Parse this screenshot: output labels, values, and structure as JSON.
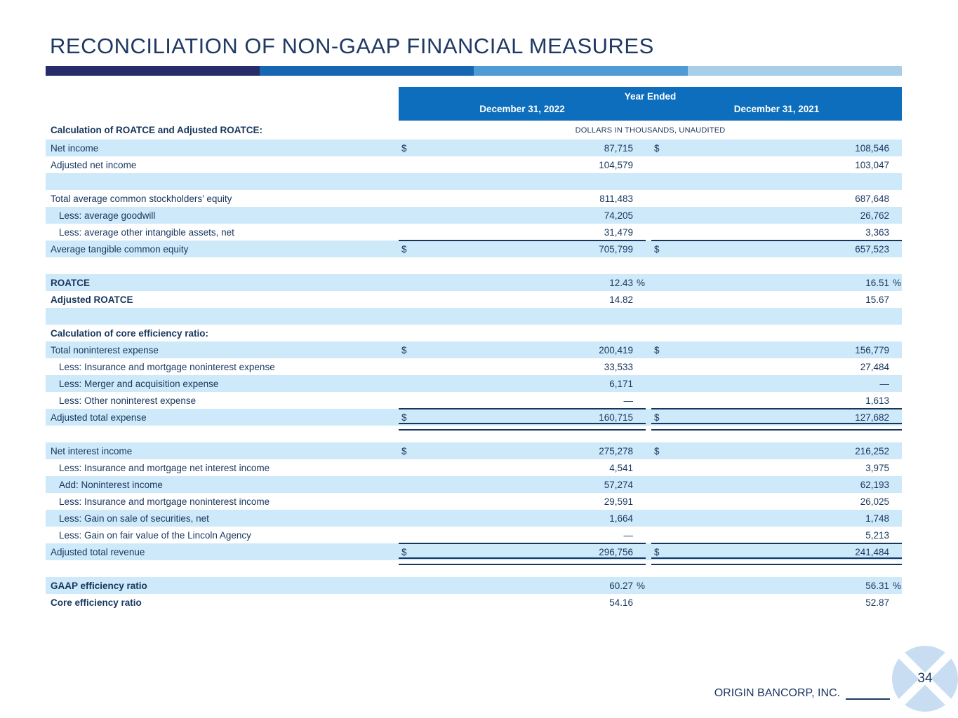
{
  "title": "RECONCILIATION OF NON-GAAP FINANCIAL MEASURES",
  "accent_bar": [
    "#262C67",
    "#1766B2",
    "#4E9BD5",
    "#A8CEEA"
  ],
  "colors": {
    "header_bg": "#0D6EBD",
    "header_text": "#FFFFFF",
    "row_highlight": "#CEE9F9",
    "table_text": "#17365D",
    "title_text": "#1F3864",
    "rule": "#17365D",
    "circle_fill": "#C9DDF2"
  },
  "table": {
    "year_ended": "Year Ended",
    "col_headers": [
      "December 31, 2022",
      "December 31, 2021"
    ],
    "section1": "Calculation of ROATCE and Adjusted ROATCE:",
    "note": "DOLLARS IN THOUSANDS, UNAUDITED",
    "rows": [
      {
        "label": "Net income",
        "d1": "$",
        "v1": "87,715",
        "d2": "$",
        "v2": "108,546",
        "shade": "blue"
      },
      {
        "label": "Adjusted net income",
        "v1": "104,579",
        "v2": "103,047",
        "shade": "white"
      },
      {
        "label": "",
        "shade": "blue"
      },
      {
        "label": "Total average common stockholders’ equity",
        "v1": "811,483",
        "v2": "687,648",
        "shade": "white"
      },
      {
        "label": "Less: average goodwill",
        "v1": "74,205",
        "v2": "26,762",
        "shade": "blue",
        "indent": true
      },
      {
        "label": "Less: average other intangible assets, net",
        "v1": "31,479",
        "v2": "3,363",
        "shade": "white",
        "indent": true,
        "rule": "single"
      },
      {
        "label": "Average tangible common equity",
        "d1": "$",
        "v1": "705,799",
        "d2": "$",
        "v2": "657,523",
        "shade": "blue"
      },
      {
        "label": "",
        "shade": "white"
      },
      {
        "label": "ROATCE",
        "v1": "12.43",
        "p1": "%",
        "v2": "16.51",
        "p2": "%",
        "shade": "blue",
        "bold": true
      },
      {
        "label": "Adjusted ROATCE",
        "v1": "14.82",
        "v2": "15.67",
        "shade": "white",
        "bold": true
      },
      {
        "label": "",
        "shade": "blue"
      },
      {
        "label": "Calculation of core efficiency ratio:",
        "shade": "white",
        "bold": true
      },
      {
        "label": "Total noninterest expense",
        "d1": "$",
        "v1": "200,419",
        "d2": "$",
        "v2": "156,779",
        "shade": "blue"
      },
      {
        "label": "Less: Insurance and mortgage noninterest expense",
        "v1": "33,533",
        "v2": "27,484",
        "shade": "white",
        "indent": true
      },
      {
        "label": "Less: Merger and acquisition expense",
        "v1": "6,171",
        "v2": "—",
        "shade": "blue",
        "indent": true
      },
      {
        "label": "Less: Other noninterest expense",
        "v1": "—",
        "v2": "1,613",
        "shade": "white",
        "indent": true,
        "rule": "single"
      },
      {
        "label": "Adjusted total expense",
        "d1": "$",
        "v1": "160,715",
        "d2": "$",
        "v2": "127,682",
        "shade": "blue",
        "rule": "double"
      },
      {
        "label": "",
        "shade": "white"
      },
      {
        "label": "Net interest income",
        "d1": "$",
        "v1": "275,278",
        "d2": "$",
        "v2": "216,252",
        "shade": "blue"
      },
      {
        "label": "Less: Insurance and mortgage net interest income",
        "v1": "4,541",
        "v2": "3,975",
        "shade": "white",
        "indent": true
      },
      {
        "label": "Add: Noninterest income",
        "v1": "57,274",
        "v2": "62,193",
        "shade": "blue",
        "indent": true
      },
      {
        "label": "Less: Insurance and mortgage noninterest income",
        "v1": "29,591",
        "v2": "26,025",
        "shade": "white",
        "indent": true
      },
      {
        "label": "Less: Gain on sale of securities, net",
        "v1": "1,664",
        "v2": "1,748",
        "shade": "blue",
        "indent": true
      },
      {
        "label": "Less: Gain on fair value of the Lincoln Agency",
        "v1": "—",
        "v2": "5,213",
        "shade": "white",
        "indent": true,
        "rule": "single"
      },
      {
        "label": "Adjusted total revenue",
        "d1": "$",
        "v1": "296,756",
        "d2": "$",
        "v2": "241,484",
        "shade": "blue",
        "rule": "double"
      },
      {
        "label": "",
        "shade": "white"
      },
      {
        "label": "GAAP efficiency ratio",
        "v1": "60.27",
        "p1": "%",
        "v2": "56.31",
        "p2": "%",
        "shade": "blue",
        "bold": true
      },
      {
        "label": "Core efficiency ratio",
        "v1": "54.16",
        "v2": "52.87",
        "shade": "white",
        "bold": true
      }
    ]
  },
  "footer": {
    "company": "ORIGIN BANCORP, INC.",
    "page": "34"
  }
}
